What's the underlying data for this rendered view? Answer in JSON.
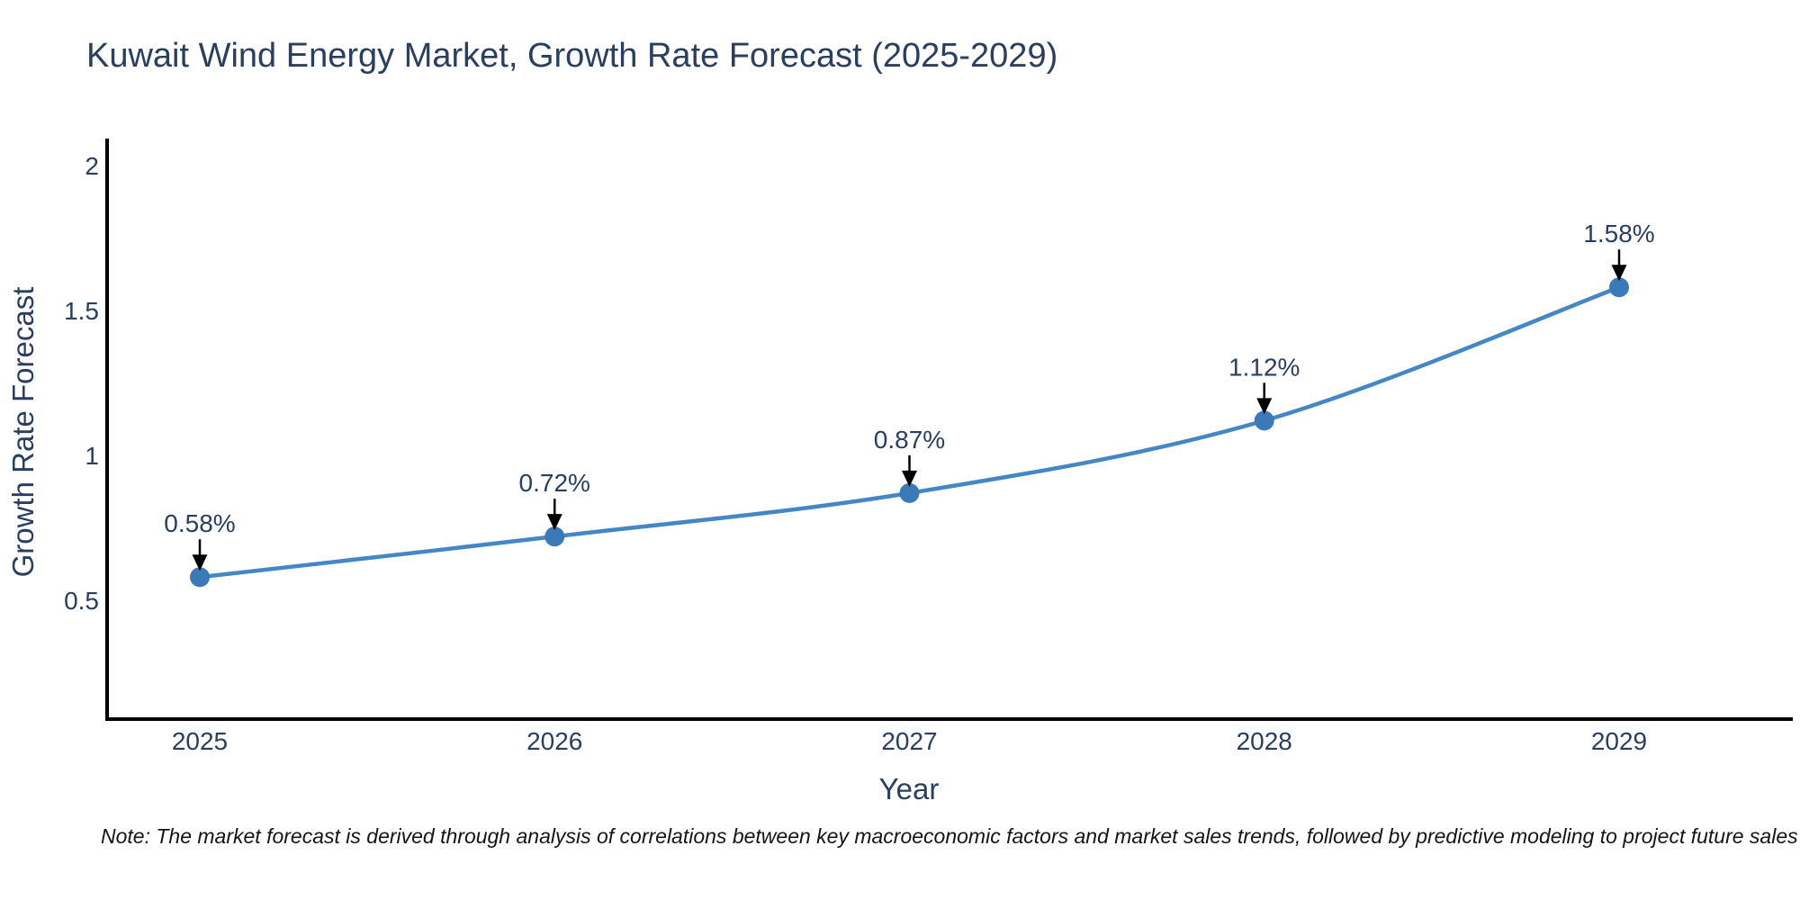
{
  "chart": {
    "title": "Kuwait Wind Energy Market, Growth Rate Forecast (2025-2029)",
    "ylabel": "Growth Rate Forecast",
    "xlabel": "Year",
    "note": "Note: The market forecast is derived through analysis of correlations between key macroeconomic factors and market sales trends, followed by predictive modeling to project future sales"
  },
  "chart_data": {
    "type": "line",
    "title": "Kuwait Wind Energy Market, Growth Rate Forecast (2025-2029)",
    "xlabel": "Year",
    "ylabel": "Growth Rate Forecast",
    "x": [
      2025,
      2026,
      2027,
      2028,
      2029
    ],
    "values": [
      0.58,
      0.72,
      0.87,
      1.12,
      1.58
    ],
    "point_labels": [
      "0.58%",
      "0.72%",
      "0.87%",
      "1.12%",
      "1.58%"
    ],
    "xtick_labels": [
      "2025",
      "2026",
      "2027",
      "2028",
      "2029"
    ],
    "yticks": [
      0.5,
      1,
      1.5,
      2
    ],
    "ytick_labels": [
      "0.5",
      "1",
      "1.5",
      "2"
    ],
    "ylim": [
      0.09,
      2.09
    ],
    "xlim": [
      2024.73,
      2029.49
    ],
    "grid": false,
    "legend": "none",
    "line_shape": "spline",
    "annotations_have_arrows": true
  },
  "colors": {
    "line": "#4487c5",
    "marker": "#3b7ab8",
    "axis": "#000000",
    "text": "#2a3f5f",
    "arrow": "#000000",
    "note_text": "#151515",
    "background": "#ffffff"
  }
}
